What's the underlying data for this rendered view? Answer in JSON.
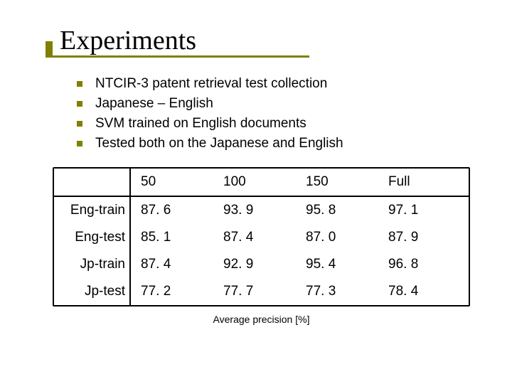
{
  "title": "Experiments",
  "bullets": [
    "NTCIR-3 patent retrieval test collection",
    "Japanese – English",
    "SVM trained on English documents",
    "Tested both on the Japanese and English"
  ],
  "table": {
    "columns": [
      "50",
      "100",
      "150",
      "Full"
    ],
    "rows": [
      {
        "label": "Eng-train",
        "values": [
          "87. 6",
          "93. 9",
          "95. 8",
          "97. 1"
        ]
      },
      {
        "label": "Eng-test",
        "values": [
          "85. 1",
          "87. 4",
          "87. 0",
          "87. 9"
        ]
      },
      {
        "label": "Jp-train",
        "values": [
          "87. 4",
          "92. 9",
          "95. 4",
          "96. 8"
        ]
      },
      {
        "label": "Jp-test",
        "values": [
          "77. 2",
          "77. 7",
          "77. 3",
          "78. 4"
        ]
      }
    ],
    "caption": "Average precision [%]"
  },
  "colors": {
    "accent": "#808000",
    "text": "#000000",
    "background": "#ffffff",
    "border": "#000000"
  },
  "fonts": {
    "title_family": "Times New Roman",
    "body_family": "Verdana",
    "title_size_pt": 38,
    "body_size_pt": 19,
    "caption_size_pt": 14
  }
}
